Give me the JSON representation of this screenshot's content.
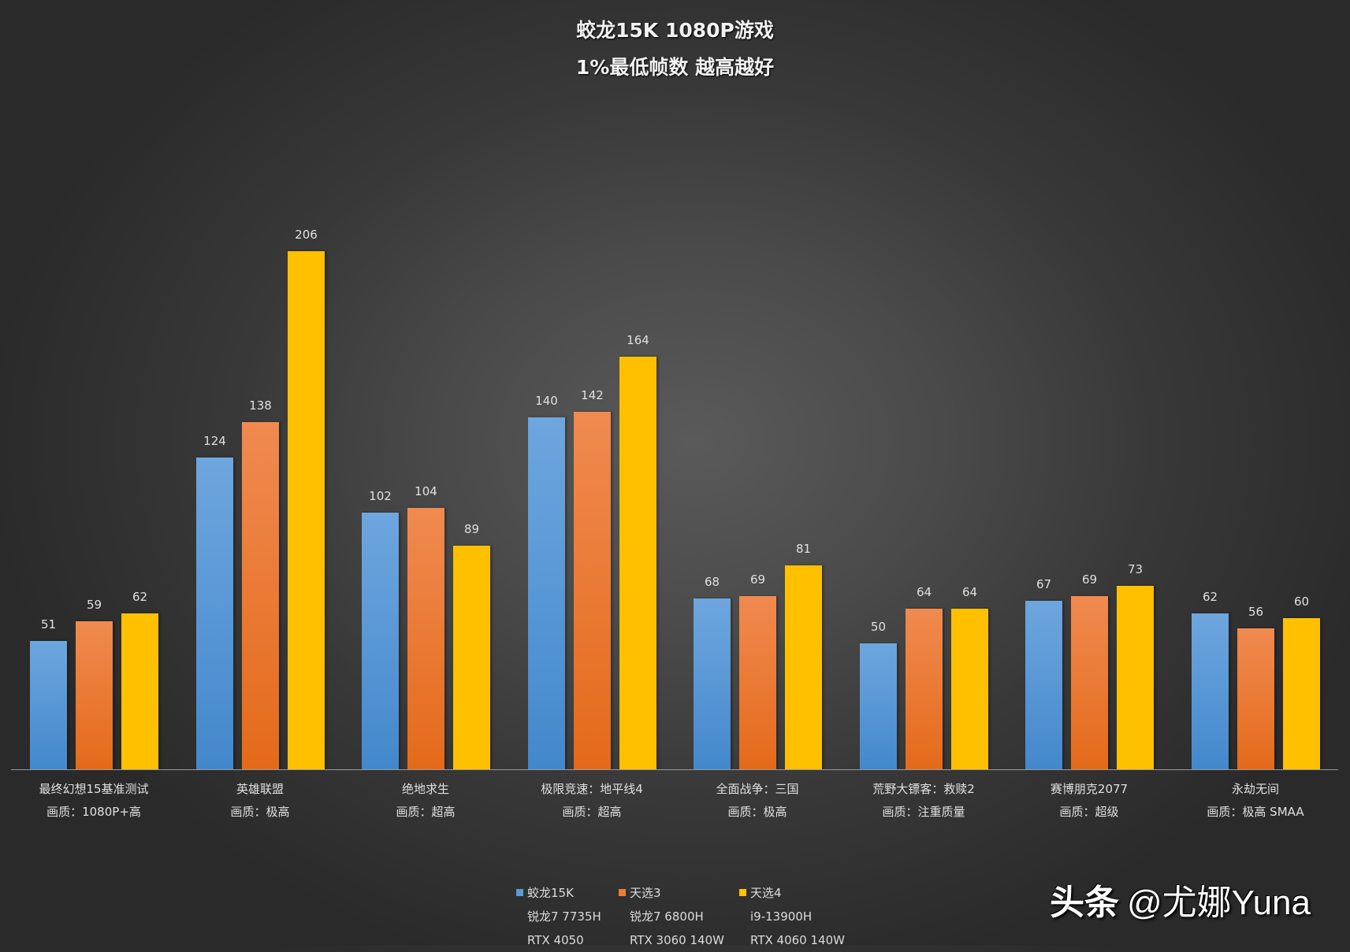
{
  "header": {
    "title": "蛟龙15K 1080P游戏",
    "subtitle": "1%最低帧数 越高越好"
  },
  "colors": {
    "series0": "#5b9bd5",
    "series1": "#ed7d31",
    "series2": "#ffc000",
    "background_center": "#5a5a5a",
    "background_edge": "#2a2a2a"
  },
  "chart_data": {
    "type": "bar",
    "title": "蛟龙15K 1080P游戏",
    "subtitle": "1%最低帧数 越高越好",
    "xlabel": "",
    "ylabel": "",
    "ylim": [
      0,
      206
    ],
    "grid": false,
    "legend_position": "bottom",
    "categories": [
      {
        "name": "最终幻想15基准测试",
        "setting": "画质：1080P+高"
      },
      {
        "name": "英雄联盟",
        "setting": "画质：极高"
      },
      {
        "name": "绝地求生",
        "setting": "画质：超高"
      },
      {
        "name": "极限竞速：地平线4",
        "setting": "画质：超高"
      },
      {
        "name": "全面战争：三国",
        "setting": "画质：极高"
      },
      {
        "name": "荒野大镖客：救赎2",
        "setting": "画质：注重质量"
      },
      {
        "name": "赛博朋克2077",
        "setting": "画质：超级"
      },
      {
        "name": "永劫无间",
        "setting": "画质：极高 SMAA"
      }
    ],
    "series": [
      {
        "name": "蛟龙15K",
        "cpu": "锐龙7 7735H",
        "gpu": "RTX 4050",
        "color": "#5b9bd5",
        "values": [
          51,
          124,
          102,
          140,
          68,
          50,
          67,
          62
        ]
      },
      {
        "name": "天选3",
        "cpu": "锐龙7 6800H",
        "gpu": "RTX 3060 140W",
        "color": "#ed7d31",
        "values": [
          59,
          138,
          104,
          142,
          69,
          64,
          69,
          56
        ]
      },
      {
        "name": "天选4",
        "cpu": "i9-13900H",
        "gpu": "RTX 4060 140W",
        "color": "#ffc000",
        "values": [
          62,
          206,
          89,
          164,
          81,
          64,
          73,
          60
        ]
      }
    ]
  },
  "watermark": {
    "platform": "头条",
    "handle": "@尤娜Yuna"
  }
}
